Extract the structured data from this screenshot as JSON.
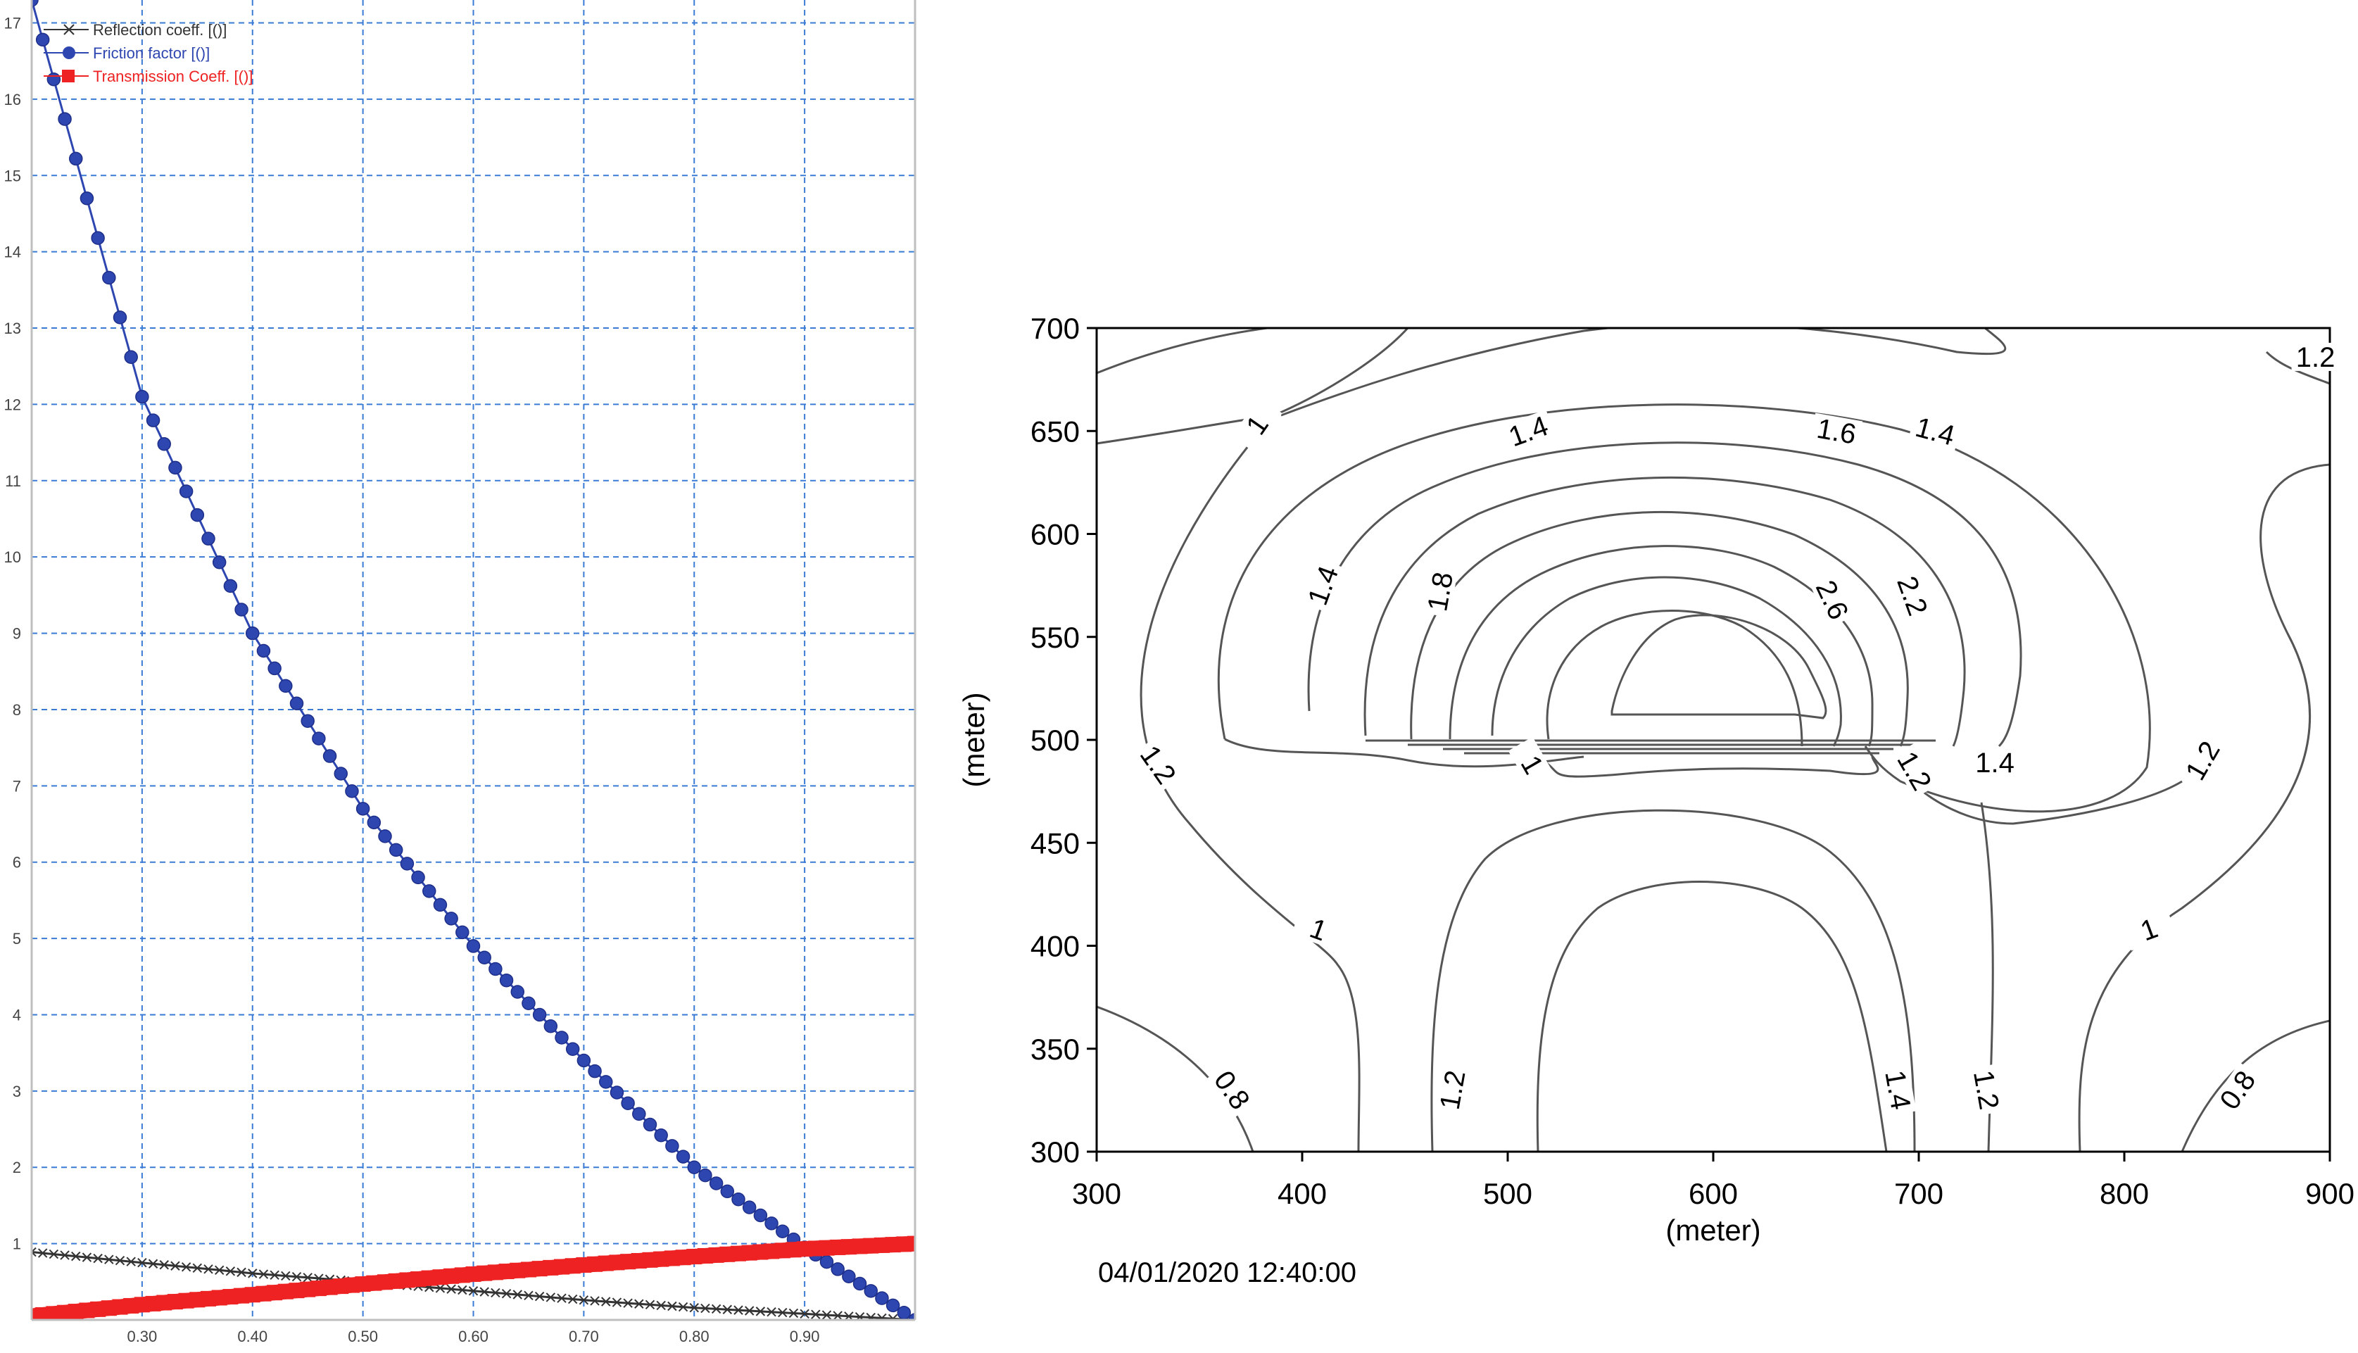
{
  "chart_data": [
    {
      "type": "line",
      "title": "",
      "xlabel": "",
      "ylabel": "",
      "xlim": [
        0.2,
        1.0
      ],
      "ylim": [
        0,
        17.3
      ],
      "xticks": [
        0.3,
        0.4,
        0.5,
        0.6,
        0.7,
        0.8,
        0.9
      ],
      "xtick_labels": [
        "0.30",
        "0.40",
        "0.50",
        "0.60",
        "0.70",
        "0.80",
        "0.90"
      ],
      "yticks": [
        1,
        2,
        3,
        4,
        5,
        6,
        7,
        8,
        9,
        10,
        11,
        12,
        13,
        14,
        15,
        16,
        17
      ],
      "ytick_labels": [
        "1",
        "2",
        "3",
        "4",
        "5",
        "6",
        "7",
        "8",
        "9",
        "10",
        "11",
        "12",
        "13",
        "14",
        "15",
        "16",
        "17"
      ],
      "grid": true,
      "legend_position": "top-left",
      "series": [
        {
          "name": "Reflection coeff. [()]",
          "color": "#333333",
          "marker": "x",
          "x": [
            0.2,
            0.3,
            0.4,
            0.5,
            0.6,
            0.7,
            0.8,
            0.9,
            1.0
          ],
          "values": [
            0.89,
            0.75,
            0.61,
            0.5,
            0.38,
            0.26,
            0.16,
            0.08,
            0.0
          ]
        },
        {
          "name": "Friction factor [()]",
          "color": "#2e46b0",
          "marker": "circle",
          "x": [
            0.2,
            0.3,
            0.4,
            0.5,
            0.6,
            0.7,
            0.8,
            0.9,
            1.0
          ],
          "values": [
            17.3,
            12.1,
            9.0,
            6.7,
            4.9,
            3.4,
            2.0,
            0.95,
            0.0
          ]
        },
        {
          "name": "Transmission Coeff. [()]",
          "color": "#ee2222",
          "marker": "square",
          "x": [
            0.2,
            0.3,
            0.4,
            0.5,
            0.6,
            0.7,
            0.8,
            0.9,
            1.0
          ],
          "values": [
            0.05,
            0.2,
            0.33,
            0.47,
            0.6,
            0.72,
            0.83,
            0.93,
            1.0
          ]
        }
      ]
    },
    {
      "type": "contour",
      "title": "",
      "xlabel": "(meter)",
      "ylabel": "(meter)",
      "xlim": [
        300,
        900
      ],
      "ylim": [
        300,
        700
      ],
      "xticks": [
        300,
        400,
        500,
        600,
        700,
        800,
        900
      ],
      "xtick_labels": [
        "300",
        "400",
        "500",
        "600",
        "700",
        "800",
        "900"
      ],
      "yticks": [
        300,
        350,
        400,
        450,
        500,
        550,
        600,
        650,
        700
      ],
      "ytick_labels": [
        "300",
        "350",
        "400",
        "450",
        "500",
        "550",
        "600",
        "650",
        "700"
      ],
      "grid": false,
      "levels": [
        0.8,
        1,
        1.2,
        1.4,
        1.6,
        1.8,
        2,
        2.2,
        2.4,
        2.6,
        2.8
      ],
      "line_color": "#555555",
      "contour_labels": [
        {
          "text": "1.2",
          "x": 893,
          "y": 686,
          "angle": 0
        },
        {
          "text": "1",
          "x": 378,
          "y": 653,
          "angle": -55
        },
        {
          "text": "1.4",
          "x": 510,
          "y": 650,
          "angle": -20
        },
        {
          "text": "1.6",
          "x": 660,
          "y": 650,
          "angle": 10
        },
        {
          "text": "1.4",
          "x": 708,
          "y": 650,
          "angle": 15
        },
        {
          "text": "1.4",
          "x": 410,
          "y": 575,
          "angle": -70
        },
        {
          "text": "1.8",
          "x": 467,
          "y": 572,
          "angle": -80
        },
        {
          "text": "2.6",
          "x": 658,
          "y": 568,
          "angle": 65
        },
        {
          "text": "2.2",
          "x": 697,
          "y": 570,
          "angle": 70
        },
        {
          "text": "1.2",
          "x": 330,
          "y": 488,
          "angle": 55
        },
        {
          "text": "1",
          "x": 512,
          "y": 488,
          "angle": 60
        },
        {
          "text": "1.2",
          "x": 698,
          "y": 485,
          "angle": 60
        },
        {
          "text": "1.4",
          "x": 737,
          "y": 489,
          "angle": 0
        },
        {
          "text": "1.2",
          "x": 838,
          "y": 490,
          "angle": -60
        },
        {
          "text": "1",
          "x": 408,
          "y": 408,
          "angle": 20
        },
        {
          "text": "1",
          "x": 812,
          "y": 408,
          "angle": -20
        },
        {
          "text": "0.8",
          "x": 366,
          "y": 330,
          "angle": 55
        },
        {
          "text": "1.2",
          "x": 473,
          "y": 330,
          "angle": -80
        },
        {
          "text": "1.4",
          "x": 690,
          "y": 330,
          "angle": 80
        },
        {
          "text": "1.2",
          "x": 733,
          "y": 330,
          "angle": 80
        },
        {
          "text": "0.8",
          "x": 855,
          "y": 330,
          "angle": -55
        }
      ]
    }
  ],
  "timestamp": "04/01/2020 12:40:00"
}
